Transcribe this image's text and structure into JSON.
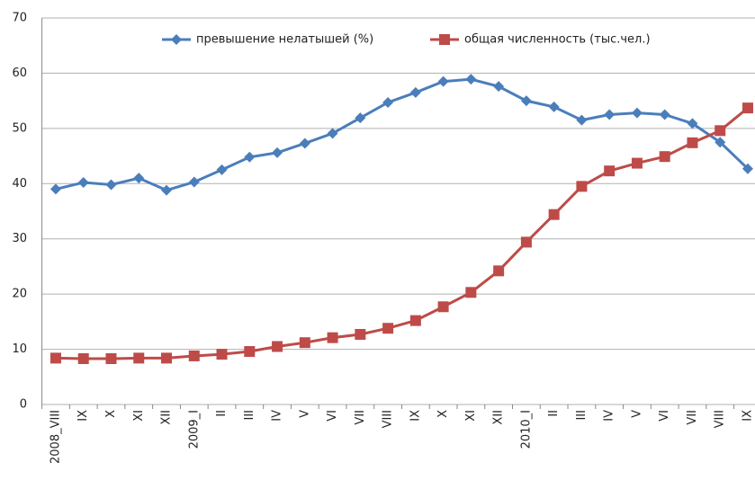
{
  "chart_data": {
    "type": "line",
    "categories": [
      "2008_VIII",
      "IX",
      "X",
      "XI",
      "XII",
      "2009_I",
      "II",
      "III",
      "IV",
      "V",
      "VI",
      "VII",
      "VIII",
      "IX",
      "X",
      "XI",
      "XII",
      "2010_I",
      "II",
      "III",
      "IV",
      "V",
      "VI",
      "VII",
      "VIII",
      "IX"
    ],
    "series": [
      {
        "name": "превышение нелатышей (%)",
        "color": "#4a7ebb",
        "marker": "diamond",
        "values": [
          39.0,
          40.2,
          39.8,
          41.0,
          38.8,
          40.3,
          42.5,
          44.8,
          45.6,
          47.3,
          49.1,
          51.9,
          54.7,
          56.5,
          58.5,
          58.9,
          57.6,
          55.0,
          53.9,
          51.5,
          52.5,
          52.8,
          52.5,
          50.9,
          47.5,
          42.7
        ]
      },
      {
        "name": "общая численность (тыс.чел.)",
        "color": "#be4b48",
        "marker": "square",
        "values": [
          8.4,
          8.3,
          8.3,
          8.4,
          8.4,
          8.8,
          9.1,
          9.6,
          10.5,
          11.2,
          12.1,
          12.7,
          13.8,
          15.2,
          17.7,
          20.3,
          24.2,
          29.4,
          34.4,
          39.5,
          42.3,
          43.7,
          44.9,
          47.4,
          49.6,
          53.7
        ]
      }
    ],
    "ylim": [
      0,
      70
    ],
    "yticks": [
      0,
      10,
      20,
      30,
      40,
      50,
      60,
      70
    ],
    "grid": true,
    "legend": "top"
  }
}
